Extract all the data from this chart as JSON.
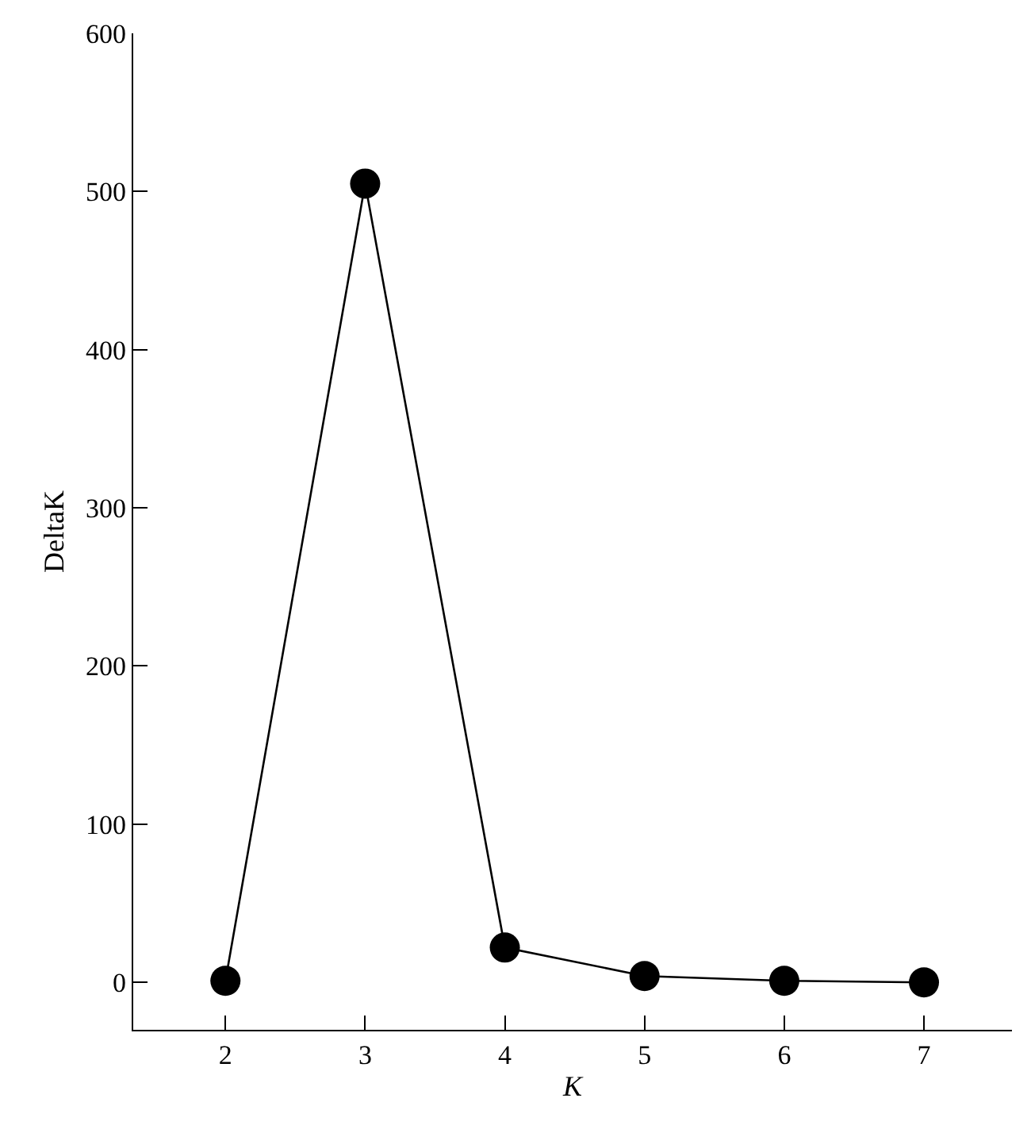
{
  "chart_data": {
    "type": "line",
    "xlabel": "K",
    "ylabel": "DeltaK",
    "x": [
      2,
      3,
      4,
      5,
      6,
      7
    ],
    "series": [
      {
        "color": "#000000",
        "values": [
          1,
          505,
          22,
          4,
          1,
          0
        ]
      }
    ],
    "xlim": [
      1.34,
      7.63
    ],
    "xticks": [
      2,
      3,
      4,
      5,
      6,
      7
    ],
    "ylim": [
      -30,
      600
    ],
    "yticks": [
      0,
      100,
      200,
      300,
      400,
      500,
      600
    ],
    "marker": "circle",
    "line_style": "solid",
    "legend": false
  }
}
